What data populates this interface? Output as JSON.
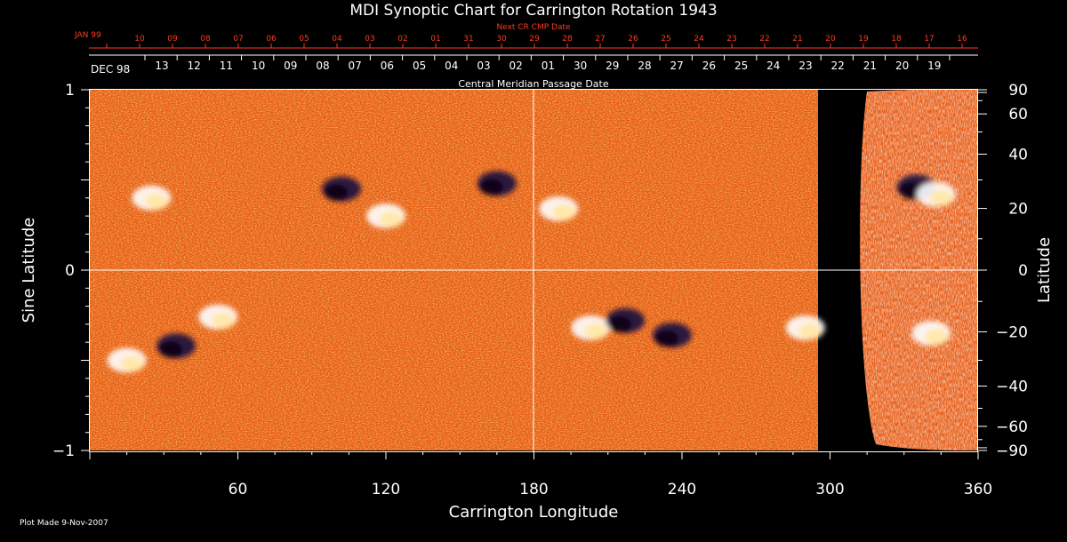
{
  "chart_data": {
    "type": "heatmap",
    "title": "MDI Synoptic Chart for Carrington Rotation 1943",
    "xlabel": "Carrington Longitude",
    "ylabel_left": "Sine Latitude",
    "ylabel_right": "Latitude",
    "xlim": [
      0,
      360
    ],
    "ylim": [
      -1,
      1
    ],
    "x_ticks": [
      60,
      120,
      180,
      240,
      300,
      360
    ],
    "y_ticks_left": [
      1,
      0,
      -1
    ],
    "y_ticks_left_labels": [
      "1",
      "0",
      "−1"
    ],
    "y_ticks_right": [
      90,
      60,
      40,
      20,
      0,
      -20,
      -40,
      -60,
      -90
    ],
    "y_ticks_right_labels": [
      "90",
      "60",
      "40",
      "20",
      "0",
      "−20",
      "−40",
      "−60",
      "−90"
    ],
    "central_meridian_longitude": 180,
    "data_coverage_end_longitude": 296,
    "next_cr_axis": {
      "label": "Next CR CMP Date",
      "start_label": "JAN 99",
      "dates": [
        "10",
        "09",
        "08",
        "07",
        "06",
        "05",
        "04",
        "03",
        "02",
        "01",
        "31",
        "30",
        "29",
        "28",
        "27",
        "26",
        "25",
        "24",
        "23",
        "22",
        "21",
        "20",
        "19",
        "18",
        "17",
        "16"
      ]
    },
    "cmp_axis": {
      "label": "Central Meridian Passage Date",
      "start_label": "DEC 98",
      "dates": [
        "13",
        "12",
        "11",
        "10",
        "09",
        "08",
        "07",
        "06",
        "05",
        "04",
        "03",
        "02",
        "01",
        "30",
        "29",
        "28",
        "27",
        "26",
        "25",
        "24",
        "23",
        "22",
        "21",
        "20",
        "19"
      ]
    },
    "active_regions": [
      {
        "lon": 25,
        "sinlat": 0.4,
        "polarity": "positive"
      },
      {
        "lon": 102,
        "sinlat": 0.45,
        "polarity": "negative"
      },
      {
        "lon": 120,
        "sinlat": 0.3,
        "polarity": "positive"
      },
      {
        "lon": 165,
        "sinlat": 0.48,
        "polarity": "negative"
      },
      {
        "lon": 190,
        "sinlat": 0.34,
        "polarity": "positive"
      },
      {
        "lon": 335,
        "sinlat": 0.46,
        "polarity": "negative"
      },
      {
        "lon": 343,
        "sinlat": 0.42,
        "polarity": "positive"
      },
      {
        "lon": 15,
        "sinlat": -0.5,
        "polarity": "positive"
      },
      {
        "lon": 35,
        "sinlat": -0.42,
        "polarity": "negative"
      },
      {
        "lon": 52,
        "sinlat": -0.26,
        "polarity": "positive"
      },
      {
        "lon": 203,
        "sinlat": -0.32,
        "polarity": "positive"
      },
      {
        "lon": 217,
        "sinlat": -0.28,
        "polarity": "negative"
      },
      {
        "lon": 236,
        "sinlat": -0.36,
        "polarity": "negative"
      },
      {
        "lon": 290,
        "sinlat": -0.32,
        "polarity": "positive"
      },
      {
        "lon": 341,
        "sinlat": -0.35,
        "polarity": "positive"
      }
    ]
  },
  "footer": {
    "plot_made": "Plot Made  9-Nov-2007"
  },
  "colors": {
    "background": "#000000",
    "map_base": "#e85a12",
    "positive_field": "#ffffff",
    "negative_field": "#1a1040",
    "date_axis_red": "#ff3b1a",
    "axis": "#ffffff"
  }
}
